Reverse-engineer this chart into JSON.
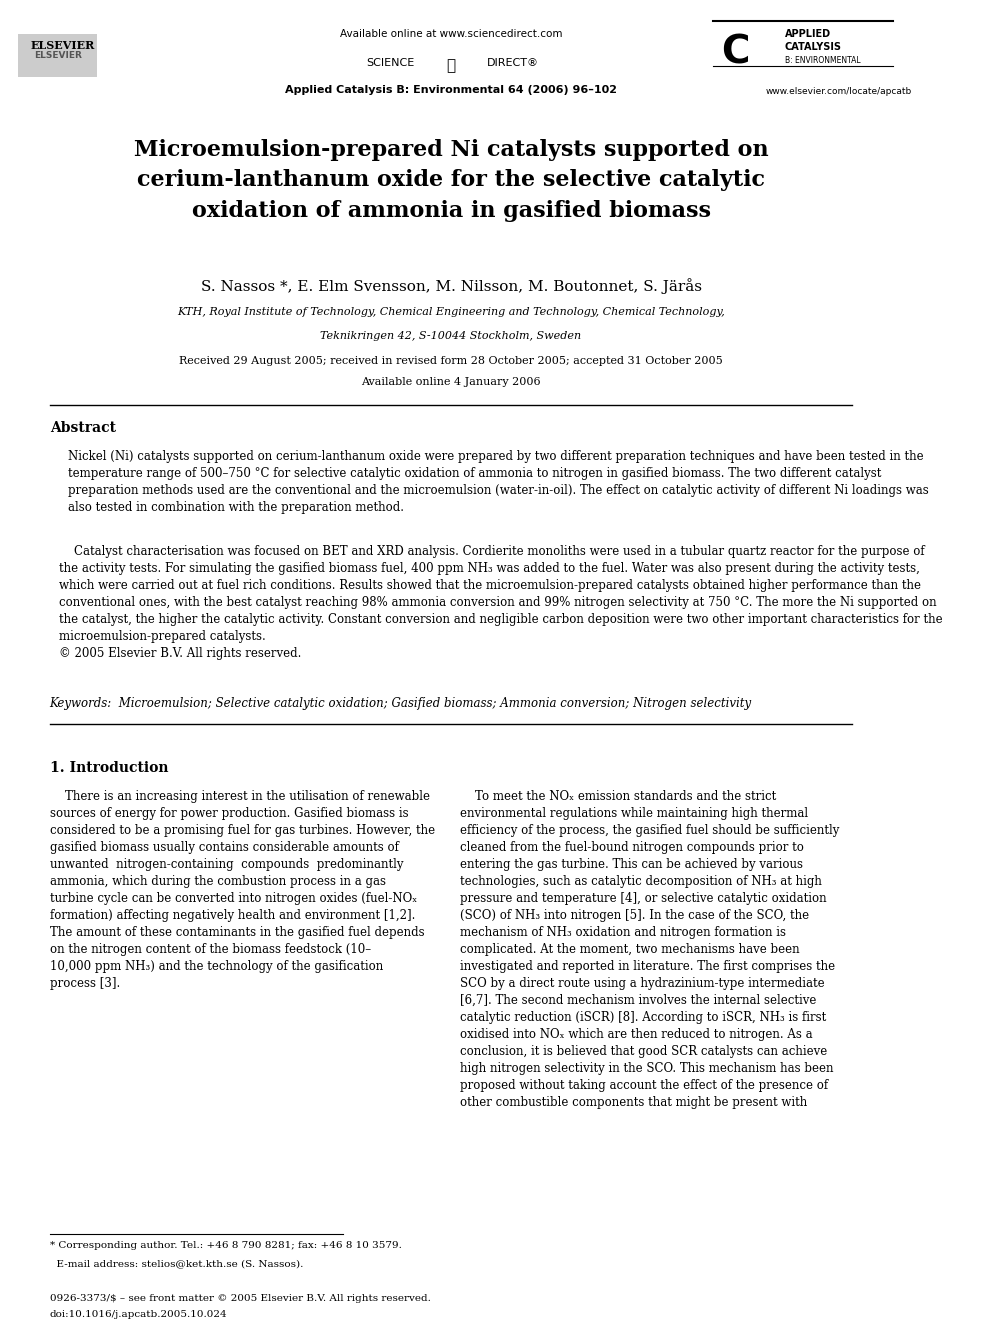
{
  "bg_color": "#ffffff",
  "page_width": 9.92,
  "page_height": 13.23,
  "header": {
    "available_online": "Available online at www.sciencedirect.com",
    "journal_info": "Applied Catalysis B: Environmental 64 (2006) 96–102",
    "website": "www.elsevier.com/locate/apcatb",
    "journal_name_top": "APPLIED",
    "journal_name_bot": "CATALYSIS",
    "journal_sub": "B: ENVIRONMENTAL"
  },
  "title": "Microemulsion-prepared Ni catalysts supported on\ncerium-lanthanum oxide for the selective catalytic\noxidation of ammonia in gasified biomass",
  "authors": "S. Nassos *, E. Elm Svensson, M. Nilsson, M. Boutonnet, S. Järås",
  "affiliation_line1": "KTH, Royal Institute of Technology, Chemical Engineering and Technology, Chemical Technology,",
  "affiliation_line2": "Teknikringen 42, S-10044 Stockholm, Sweden",
  "received": "Received 29 August 2005; received in revised form 28 October 2005; accepted 31 October 2005",
  "available_online_date": "Available online 4 January 2006",
  "abstract_title": "Abstract",
  "abstract_p1": "Nickel (Ni) catalysts supported on cerium-lanthanum oxide were prepared by two different preparation techniques and have been tested in the\ntemperature range of 500–750 °C for selective catalytic oxidation of ammonia to nitrogen in gasified biomass. The two different catalyst\npreparation methods used are the conventional and the microemulsion (water-in-oil). The effect on catalytic activity of different Ni loadings was\nalso tested in combination with the preparation method.",
  "abstract_p2": "    Catalyst characterisation was focused on BET and XRD analysis. Cordierite monoliths were used in a tubular quartz reactor for the purpose of\nthe activity tests. For simulating the gasified biomass fuel, 400 ppm NH₃ was added to the fuel. Water was also present during the activity tests,\nwhich were carried out at fuel rich conditions. Results showed that the microemulsion-prepared catalysts obtained higher performance than the\nconventional ones, with the best catalyst reaching 98% ammonia conversion and 99% nitrogen selectivity at 750 °C. The more the Ni supported on\nthe catalyst, the higher the catalytic activity. Constant conversion and negligible carbon deposition were two other important characteristics for the\nmicroemulsion-prepared catalysts.\n© 2005 Elsevier B.V. All rights reserved.",
  "keywords_line": "Keywords:  Microemulsion; Selective catalytic oxidation; Gasified biomass; Ammonia conversion; Nitrogen selectivity",
  "section1_title": "1. Introduction",
  "intro_col1_p1": "    There is an increasing interest in the utilisation of renewable\nsources of energy for power production. Gasified biomass is\nconsidered to be a promising fuel for gas turbines. However, the\ngasified biomass usually contains considerable amounts of\nunwanted  nitrogen-containing  compounds  predominantly\nammonia, which during the combustion process in a gas\nturbine cycle can be converted into nitrogen oxides (fuel-NOₓ\nformation) affecting negatively health and environment [1,2].\nThe amount of these contaminants in the gasified fuel depends\non the nitrogen content of the biomass feedstock (10–\n10,000 ppm NH₃) and the technology of the gasification\nprocess [3].",
  "intro_col2_p1": "    To meet the NOₓ emission standards and the strict\nenvironmental regulations while maintaining high thermal\nefficiency of the process, the gasified fuel should be sufficiently\ncleaned from the fuel-bound nitrogen compounds prior to\nentering the gas turbine. This can be achieved by various\ntechnologies, such as catalytic decomposition of NH₃ at high\npressure and temperature [4], or selective catalytic oxidation\n(SCO) of NH₃ into nitrogen [5]. In the case of the SCO, the\nmechanism of NH₃ oxidation and nitrogen formation is\ncomplicated. At the moment, two mechanisms have been\ninvestigated and reported in literature. The first comprises the\nSCO by a direct route using a hydrazinium-type intermediate\n[6,7]. The second mechanism involves the internal selective\ncatalytic reduction (iSCR) [8]. According to iSCR, NH₃ is first\noxidised into NOₓ which are then reduced to nitrogen. As a\nconclusion, it is believed that good SCR catalysts can achieve\nhigh nitrogen selectivity in the SCO. This mechanism has been\nproposed without taking account the effect of the presence of\nother combustible components that might be present with",
  "footnote_line1": "* Corresponding author. Tel.: +46 8 790 8281; fax: +46 8 10 3579.",
  "footnote_line2": "  E-mail address: stelios@ket.kth.se (S. Nassos).",
  "footer_line1": "0926-3373/$ – see front matter © 2005 Elsevier B.V. All rights reserved.",
  "footer_line2": "doi:10.1016/j.apcatb.2005.10.024"
}
